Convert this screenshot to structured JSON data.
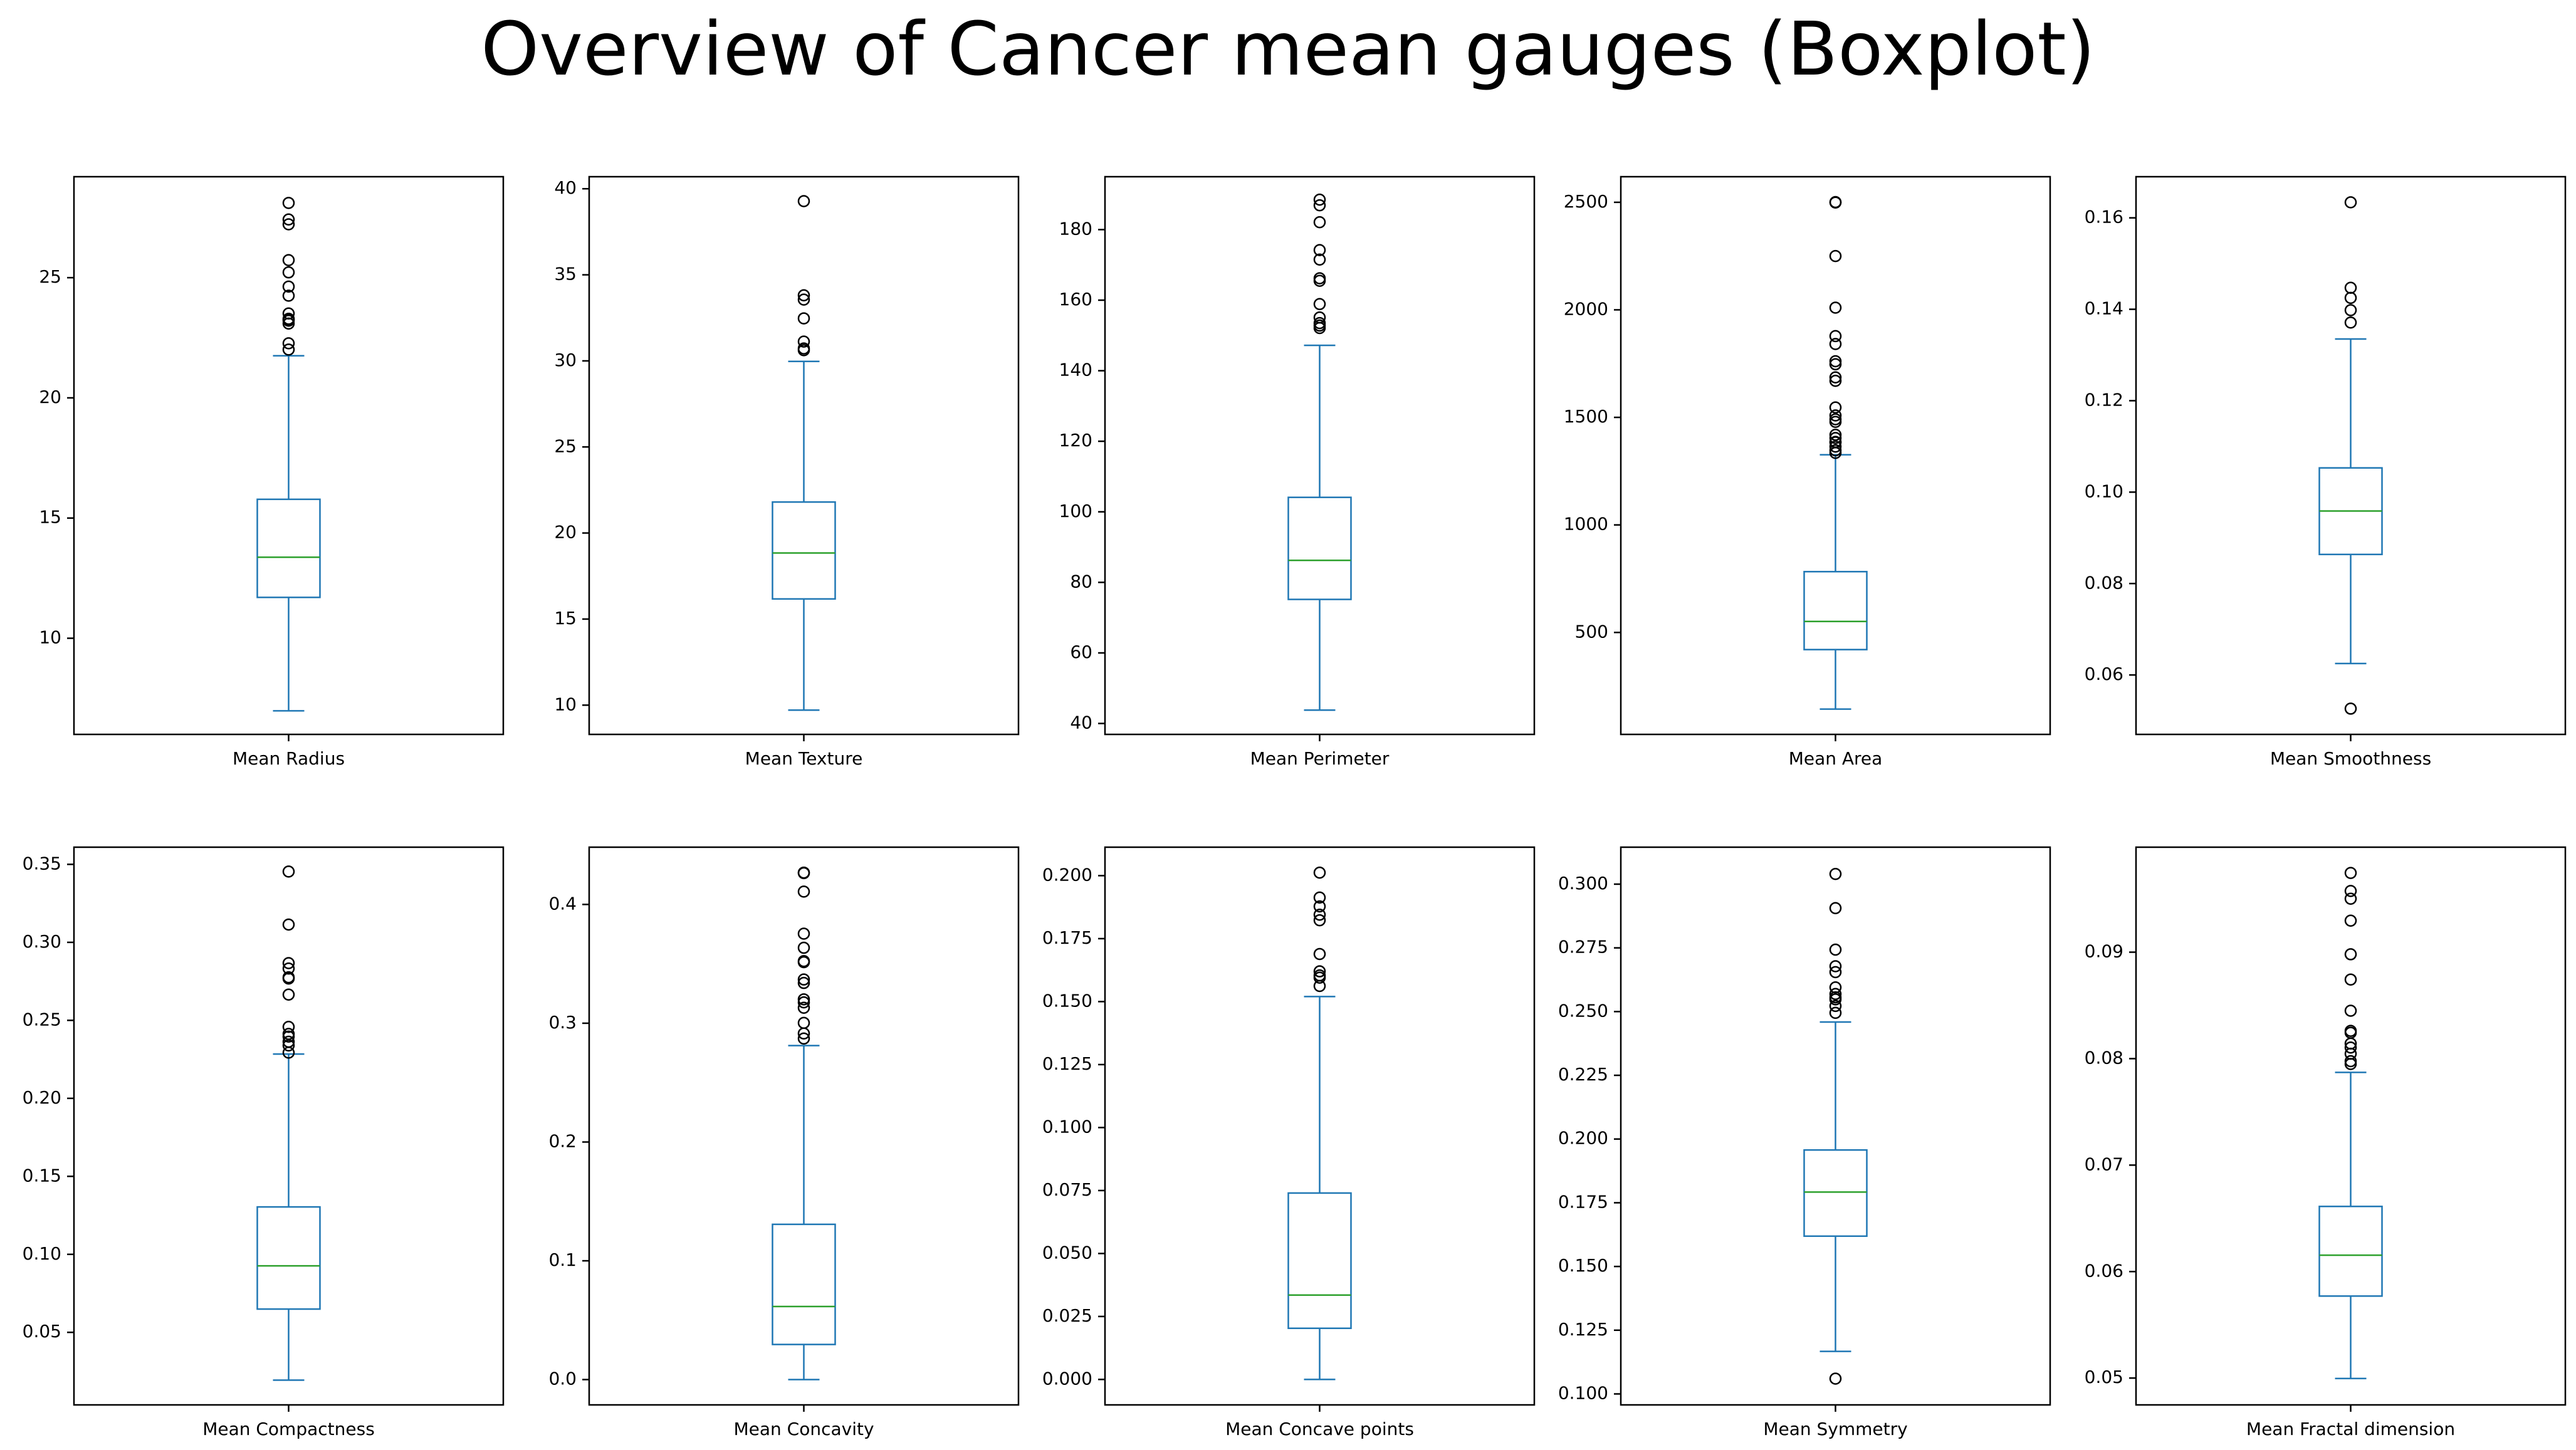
{
  "title": "Overview of Cancer mean gauges (Boxplot)",
  "colors": {
    "box": "#1f77b4",
    "median": "#2ca02c",
    "flier": "#000000",
    "frame": "#000000",
    "background": "#ffffff"
  },
  "chart_data": [
    {
      "type": "boxplot",
      "xlabel": "Mean Radius",
      "ylim": [
        6.0,
        29.2
      ],
      "yticks": [
        10,
        15,
        20,
        25
      ],
      "tick_labels": [
        "10",
        "15",
        "20",
        "25"
      ],
      "stats": {
        "whislo": 6.98,
        "q1": 11.7,
        "med": 13.37,
        "q3": 15.78,
        "whishi": 21.75
      },
      "fliers": [
        22.01,
        22.27,
        23.09,
        23.21,
        23.27,
        23.29,
        23.51,
        24.25,
        24.63,
        25.22,
        25.73,
        27.22,
        27.42,
        28.11
      ]
    },
    {
      "type": "boxplot",
      "xlabel": "Mean Texture",
      "ylim": [
        8.3,
        40.7
      ],
      "yticks": [
        10,
        15,
        20,
        25,
        30,
        35,
        40
      ],
      "tick_labels": [
        "10",
        "15",
        "20",
        "25",
        "30",
        "35",
        "40"
      ],
      "stats": {
        "whislo": 9.71,
        "q1": 16.17,
        "med": 18.84,
        "q3": 21.8,
        "whishi": 29.97
      },
      "fliers": [
        30.62,
        30.72,
        31.12,
        32.47,
        33.56,
        33.81,
        39.28
      ]
    },
    {
      "type": "boxplot",
      "xlabel": "Mean Perimeter",
      "ylim": [
        36.9,
        195.0
      ],
      "yticks": [
        40,
        60,
        80,
        100,
        120,
        140,
        160,
        180
      ],
      "tick_labels": [
        "40",
        "60",
        "80",
        "100",
        "120",
        "140",
        "160",
        "180"
      ],
      "stats": {
        "whislo": 43.79,
        "q1": 75.17,
        "med": 86.24,
        "q3": 104.1,
        "whishi": 147.2
      },
      "fliers": [
        152.1,
        152.8,
        153.5,
        155.1,
        158.9,
        165.5,
        166.2,
        171.5,
        174.2,
        182.1,
        186.9,
        188.5
      ]
    },
    {
      "type": "boxplot",
      "xlabel": "Mean Area",
      "ylim": [
        26.0,
        2619.0
      ],
      "yticks": [
        500,
        1000,
        1500,
        2000,
        2500
      ],
      "tick_labels": [
        "500",
        "1000",
        "1500",
        "2000",
        "2500"
      ],
      "stats": {
        "whislo": 143.5,
        "q1": 420.3,
        "med": 551.1,
        "q3": 782.7,
        "whishi": 1326
      },
      "fliers": [
        1335,
        1347,
        1364,
        1384,
        1386,
        1404,
        1419,
        1479,
        1491,
        1509,
        1546,
        1670,
        1686,
        1747,
        1761,
        1841,
        1878,
        2010,
        2250,
        2499,
        2501
      ]
    },
    {
      "type": "boxplot",
      "xlabel": "Mean Smoothness",
      "ylim": [
        0.047,
        0.169
      ],
      "yticks": [
        0.06,
        0.08,
        0.1,
        0.12,
        0.14,
        0.16
      ],
      "tick_labels": [
        "0.06",
        "0.08",
        "0.10",
        "0.12",
        "0.14",
        "0.16"
      ],
      "stats": {
        "whislo": 0.06251,
        "q1": 0.08637,
        "med": 0.09587,
        "q3": 0.1053,
        "whishi": 0.1335
      },
      "fliers": [
        0.05263,
        0.1371,
        0.1398,
        0.1425,
        0.1447,
        0.1634
      ]
    },
    {
      "type": "boxplot",
      "xlabel": "Mean Compactness",
      "ylim": [
        0.0035,
        0.361
      ],
      "yticks": [
        0.05,
        0.1,
        0.15,
        0.2,
        0.25,
        0.3,
        0.35
      ],
      "tick_labels": [
        "0.05",
        "0.10",
        "0.15",
        "0.20",
        "0.25",
        "0.30",
        "0.35"
      ],
      "stats": {
        "whislo": 0.01938,
        "q1": 0.06492,
        "med": 0.09263,
        "q3": 0.1304,
        "whishi": 0.2284
      },
      "fliers": [
        0.2293,
        0.2339,
        0.2363,
        0.2396,
        0.2413,
        0.2458,
        0.2665,
        0.2768,
        0.2776,
        0.2832,
        0.2867,
        0.3114,
        0.3454
      ]
    },
    {
      "type": "boxplot",
      "xlabel": "Mean Concavity",
      "ylim": [
        -0.0213,
        0.4482
      ],
      "yticks": [
        0.0,
        0.1,
        0.2,
        0.3,
        0.4
      ],
      "tick_labels": [
        "0.0",
        "0.1",
        "0.2",
        "0.3",
        "0.4"
      ],
      "stats": {
        "whislo": 0.0,
        "q1": 0.02956,
        "med": 0.06154,
        "q3": 0.1307,
        "whishi": 0.2812
      },
      "fliers": [
        0.2871,
        0.2914,
        0.3003,
        0.313,
        0.3176,
        0.3201,
        0.3339,
        0.3368,
        0.3514,
        0.3523,
        0.3635,
        0.3754,
        0.4108,
        0.4264,
        0.4268
      ]
    },
    {
      "type": "boxplot",
      "xlabel": "Mean Concave points",
      "ylim": [
        -0.0101,
        0.2113
      ],
      "yticks": [
        0.0,
        0.025,
        0.05,
        0.075,
        0.1,
        0.125,
        0.15,
        0.175,
        0.2
      ],
      "tick_labels": [
        "0.000",
        "0.025",
        "0.050",
        "0.075",
        "0.100",
        "0.125",
        "0.150",
        "0.175",
        "0.200"
      ],
      "stats": {
        "whislo": 0.0,
        "q1": 0.02031,
        "med": 0.0335,
        "q3": 0.074,
        "whishi": 0.152
      },
      "fliers": [
        0.1562,
        0.1595,
        0.1604,
        0.162,
        0.1689,
        0.1823,
        0.1845,
        0.1878,
        0.1913,
        0.2012
      ]
    },
    {
      "type": "boxplot",
      "xlabel": "Mean Symmetry",
      "ylim": [
        0.0957,
        0.3145
      ],
      "yticks": [
        0.1,
        0.125,
        0.15,
        0.175,
        0.2,
        0.225,
        0.25,
        0.275,
        0.3
      ],
      "tick_labels": [
        "0.100",
        "0.125",
        "0.150",
        "0.175",
        "0.200",
        "0.225",
        "0.250",
        "0.275",
        "0.300"
      ],
      "stats": {
        "whislo": 0.1167,
        "q1": 0.1619,
        "med": 0.1792,
        "q3": 0.1957,
        "whishi": 0.2459
      },
      "fliers": [
        0.106,
        0.2495,
        0.2522,
        0.2548,
        0.2556,
        0.2569,
        0.2595,
        0.2655,
        0.2678,
        0.2743,
        0.2906,
        0.304
      ]
    },
    {
      "type": "boxplot",
      "xlabel": "Mean Fractal dimension",
      "ylim": [
        0.04748,
        0.09986
      ],
      "yticks": [
        0.05,
        0.06,
        0.07,
        0.08,
        0.09
      ],
      "tick_labels": [
        "0.05",
        "0.06",
        "0.07",
        "0.08",
        "0.09"
      ],
      "stats": {
        "whislo": 0.04996,
        "q1": 0.0577,
        "med": 0.06154,
        "q3": 0.06612,
        "whishi": 0.07871
      },
      "fliers": [
        0.0795,
        0.07976,
        0.08046,
        0.08104,
        0.08142,
        0.08243,
        0.08261,
        0.0845,
        0.08743,
        0.0898,
        0.09296,
        0.09502,
        0.09575,
        0.09744
      ]
    }
  ]
}
